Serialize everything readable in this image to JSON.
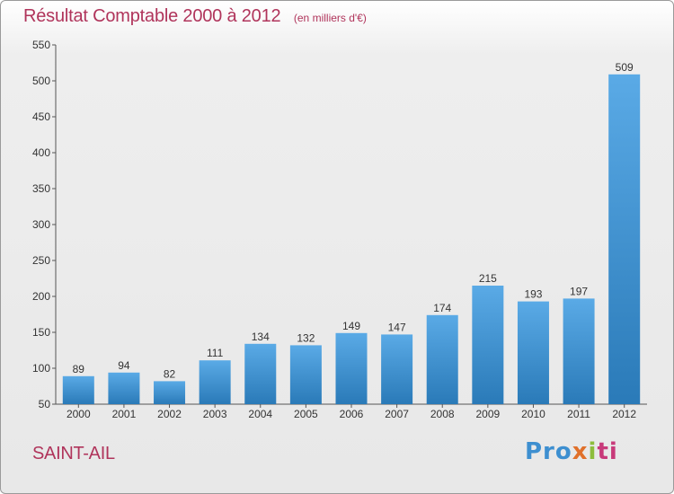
{
  "chart_data": {
    "type": "bar",
    "title": "Résultat Comptable 2000 à 2012",
    "subtitle": "(en milliers d'€)",
    "categories": [
      "2000",
      "2001",
      "2002",
      "2003",
      "2004",
      "2005",
      "2006",
      "2007",
      "2008",
      "2009",
      "2010",
      "2011",
      "2012"
    ],
    "values": [
      89,
      94,
      82,
      111,
      134,
      132,
      149,
      147,
      174,
      215,
      193,
      197,
      509
    ],
    "ylim": [
      50,
      550
    ],
    "yticks": [
      50,
      100,
      150,
      200,
      250,
      300,
      350,
      400,
      450,
      500,
      550
    ],
    "grid": false,
    "colors": {
      "bar_top": "#5aaae6",
      "bar_bottom": "#2a7ab8"
    }
  },
  "footer": {
    "town": "SAINT-AIL",
    "logo": {
      "p1": "Pro",
      "p2": "x",
      "p3": "i",
      "p4": "ti"
    }
  }
}
